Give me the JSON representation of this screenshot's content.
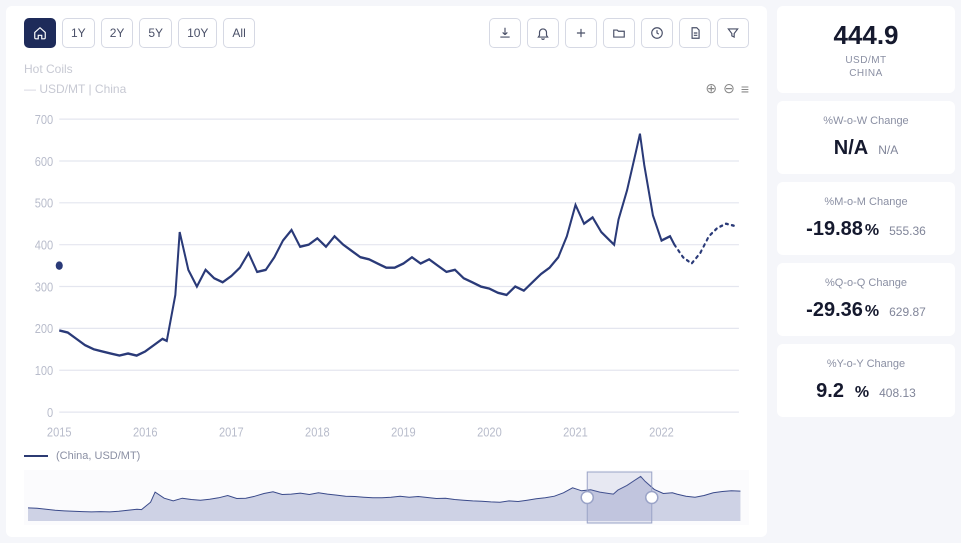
{
  "toolbar": {
    "ranges": [
      "1Y",
      "2Y",
      "5Y",
      "10Y",
      "All"
    ],
    "home_active": true
  },
  "meta": {
    "title": "Hot Coils",
    "subtitle": "USD/MT | China"
  },
  "summary": {
    "value": "444.9",
    "unit": "USD/MT",
    "country": "CHINA"
  },
  "changes": [
    {
      "label": "%W-o-W Change",
      "value": "N/A",
      "pct": "",
      "sub": "N/A"
    },
    {
      "label": "%M-o-M Change",
      "value": "-19.88",
      "pct": "%",
      "sub": "555.36"
    },
    {
      "label": "%Q-o-Q Change",
      "value": "-29.36",
      "pct": "%",
      "sub": "629.87"
    },
    {
      "label": "%Y-o-Y Change",
      "value": "9.2",
      "pct": "%",
      "sub": "408.13"
    }
  ],
  "legend": {
    "text": "(China, USD/MT)"
  },
  "chart": {
    "type": "line",
    "line_color": "#2a3a78",
    "dotted_color": "#2a3a78",
    "grid_color": "#e4e6ef",
    "axis_color": "#b8bccb",
    "axis_font": 11,
    "background_color": "#ffffff",
    "ylim": [
      0,
      700
    ],
    "ytick_step": 100,
    "xlim": [
      2015,
      2022.9
    ],
    "xticks": [
      2015,
      2016,
      2017,
      2018,
      2019,
      2020,
      2021,
      2022
    ],
    "series": [
      [
        2015.0,
        195
      ],
      [
        2015.1,
        190
      ],
      [
        2015.2,
        175
      ],
      [
        2015.3,
        160
      ],
      [
        2015.4,
        150
      ],
      [
        2015.5,
        145
      ],
      [
        2015.6,
        140
      ],
      [
        2015.7,
        135
      ],
      [
        2015.8,
        140
      ],
      [
        2015.9,
        135
      ],
      [
        2016.0,
        145
      ],
      [
        2016.1,
        160
      ],
      [
        2016.2,
        175
      ],
      [
        2016.25,
        170
      ],
      [
        2016.35,
        280
      ],
      [
        2016.4,
        430
      ],
      [
        2016.5,
        340
      ],
      [
        2016.6,
        300
      ],
      [
        2016.7,
        340
      ],
      [
        2016.8,
        320
      ],
      [
        2016.9,
        310
      ],
      [
        2017.0,
        325
      ],
      [
        2017.1,
        345
      ],
      [
        2017.2,
        380
      ],
      [
        2017.3,
        335
      ],
      [
        2017.4,
        340
      ],
      [
        2017.5,
        370
      ],
      [
        2017.6,
        410
      ],
      [
        2017.7,
        435
      ],
      [
        2017.8,
        395
      ],
      [
        2017.9,
        400
      ],
      [
        2018.0,
        415
      ],
      [
        2018.1,
        395
      ],
      [
        2018.2,
        420
      ],
      [
        2018.3,
        400
      ],
      [
        2018.4,
        385
      ],
      [
        2018.5,
        370
      ],
      [
        2018.6,
        365
      ],
      [
        2018.7,
        355
      ],
      [
        2018.8,
        345
      ],
      [
        2018.9,
        345
      ],
      [
        2019.0,
        355
      ],
      [
        2019.1,
        370
      ],
      [
        2019.2,
        355
      ],
      [
        2019.3,
        365
      ],
      [
        2019.4,
        350
      ],
      [
        2019.5,
        335
      ],
      [
        2019.6,
        340
      ],
      [
        2019.7,
        320
      ],
      [
        2019.8,
        310
      ],
      [
        2019.9,
        300
      ],
      [
        2020.0,
        295
      ],
      [
        2020.1,
        285
      ],
      [
        2020.2,
        280
      ],
      [
        2020.3,
        300
      ],
      [
        2020.4,
        290
      ],
      [
        2020.5,
        310
      ],
      [
        2020.6,
        330
      ],
      [
        2020.7,
        345
      ],
      [
        2020.8,
        370
      ],
      [
        2020.9,
        420
      ],
      [
        2021.0,
        495
      ],
      [
        2021.1,
        450
      ],
      [
        2021.2,
        465
      ],
      [
        2021.3,
        430
      ],
      [
        2021.4,
        410
      ],
      [
        2021.45,
        400
      ],
      [
        2021.5,
        460
      ],
      [
        2021.6,
        530
      ],
      [
        2021.7,
        620
      ],
      [
        2021.75,
        665
      ],
      [
        2021.8,
        590
      ],
      [
        2021.9,
        470
      ],
      [
        2022.0,
        410
      ],
      [
        2022.1,
        420
      ],
      [
        2022.15,
        400
      ]
    ],
    "forecast": [
      [
        2022.15,
        400
      ],
      [
        2022.25,
        370
      ],
      [
        2022.35,
        355
      ],
      [
        2022.45,
        380
      ],
      [
        2022.55,
        420
      ],
      [
        2022.65,
        440
      ],
      [
        2022.75,
        450
      ],
      [
        2022.85,
        445
      ]
    ],
    "start_marker_y": 350
  },
  "brush": {
    "fill_color": "#7b86b8",
    "stroke_color": "#3a4a8a",
    "handle_color": "#ffffff",
    "handle_border": "#9aa3c7",
    "window": [
      0.78,
      0.87
    ]
  }
}
